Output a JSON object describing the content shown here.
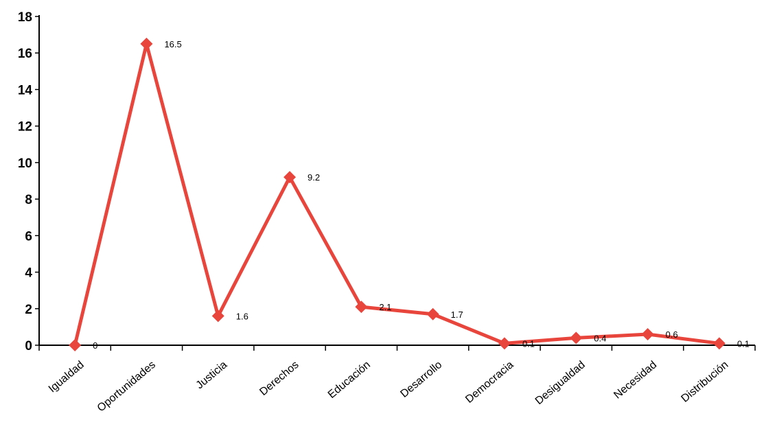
{
  "chart_data": {
    "type": "line",
    "categories": [
      "Igualdad",
      "Oportunidades",
      "Justicia",
      "Derechos",
      "Educación",
      "Desarrollo",
      "Democracia",
      "Desigualdad",
      "Necesidad",
      "Distribución"
    ],
    "series": [
      {
        "values": [
          0,
          16.5,
          1.6,
          9.2,
          2.1,
          1.7,
          0.1,
          0.4,
          0.6,
          0.1
        ],
        "color": "#e8453c"
      }
    ],
    "data_labels": [
      "0",
      "16.5",
      "1.6",
      "9.2",
      "2.1",
      "1.7",
      "0.1",
      "0.4",
      "0.6",
      "0.1"
    ],
    "y_ticks": [
      "0",
      "2",
      "4",
      "6",
      "8",
      "10",
      "12",
      "14",
      "16",
      "18"
    ],
    "ylim": [
      0,
      18
    ],
    "grid": false,
    "legend": "none",
    "marker": "diamond",
    "title": "",
    "xlabel": "",
    "ylabel": ""
  }
}
